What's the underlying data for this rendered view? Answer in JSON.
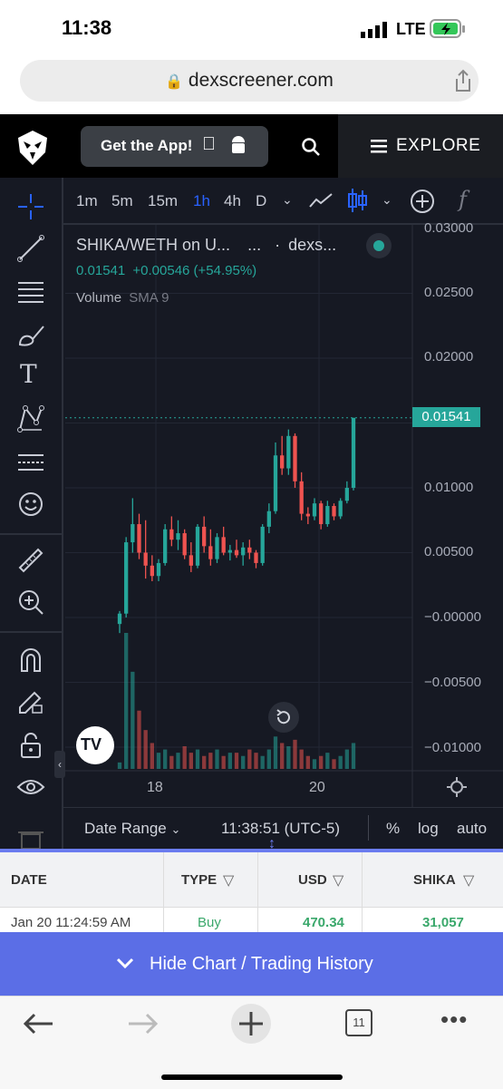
{
  "status": {
    "time": "11:38",
    "network": "LTE"
  },
  "browser": {
    "url": "dexscreener.com",
    "tabs_count": "11"
  },
  "header": {
    "get_app_label": "Get the App!",
    "explore_label": "EXPLORE"
  },
  "chart": {
    "timeframes": [
      "1m",
      "5m",
      "15m",
      "1h",
      "4h",
      "D"
    ],
    "active_timeframe": "1h",
    "symbol_title": "SHIKA/WETH on U...",
    "symbol_extra": "...",
    "exchange": "dexs...",
    "price_line": "0.01541",
    "change_line": "+0.00546 (+54.95%)",
    "indicator_label": "Volume",
    "indicator_param": "SMA 9",
    "current_price_tag": "0.01541",
    "price_axis": [
      "0.03000",
      "0.02500",
      "0.02000",
      "0.01000",
      "0.00500",
      "−0.00000",
      "−0.00500",
      "−0.01000"
    ],
    "time_axis": [
      "18",
      "20"
    ],
    "date_range_label": "Date Range",
    "clock_label": "11:38:51 (UTC-5)",
    "scale_percent": "%",
    "scale_log": "log",
    "scale_auto": "auto",
    "up_color": "#26a69a",
    "down_color": "#ef5350"
  },
  "chart_data": {
    "type": "candlestick",
    "title": "SHIKA/WETH",
    "ylim": [
      -0.012,
      0.03
    ],
    "candles": [
      {
        "o": -0.0005,
        "h": 0.0005,
        "l": -0.0012,
        "c": 0.0003
      },
      {
        "o": 0.0003,
        "h": 0.0062,
        "l": 0.0,
        "c": 0.0058
      },
      {
        "o": 0.0058,
        "h": 0.0092,
        "l": 0.005,
        "c": 0.0072
      },
      {
        "o": 0.0072,
        "h": 0.008,
        "l": 0.0045,
        "c": 0.005
      },
      {
        "o": 0.005,
        "h": 0.0075,
        "l": 0.003,
        "c": 0.004
      },
      {
        "o": 0.004,
        "h": 0.0048,
        "l": 0.0028,
        "c": 0.0032
      },
      {
        "o": 0.0032,
        "h": 0.0045,
        "l": 0.0028,
        "c": 0.0042
      },
      {
        "o": 0.0042,
        "h": 0.0072,
        "l": 0.004,
        "c": 0.0068
      },
      {
        "o": 0.0068,
        "h": 0.0078,
        "l": 0.0055,
        "c": 0.006
      },
      {
        "o": 0.006,
        "h": 0.0075,
        "l": 0.0052,
        "c": 0.0065
      },
      {
        "o": 0.0065,
        "h": 0.0068,
        "l": 0.0045,
        "c": 0.0048
      },
      {
        "o": 0.0048,
        "h": 0.0058,
        "l": 0.0035,
        "c": 0.004
      },
      {
        "o": 0.004,
        "h": 0.0072,
        "l": 0.0038,
        "c": 0.007
      },
      {
        "o": 0.007,
        "h": 0.0078,
        "l": 0.005,
        "c": 0.0055
      },
      {
        "o": 0.0055,
        "h": 0.0068,
        "l": 0.004,
        "c": 0.0045
      },
      {
        "o": 0.0045,
        "h": 0.0065,
        "l": 0.0042,
        "c": 0.0062
      },
      {
        "o": 0.0062,
        "h": 0.007,
        "l": 0.0048,
        "c": 0.005
      },
      {
        "o": 0.005,
        "h": 0.0056,
        "l": 0.0044,
        "c": 0.0052
      },
      {
        "o": 0.0052,
        "h": 0.006,
        "l": 0.0046,
        "c": 0.0048
      },
      {
        "o": 0.0048,
        "h": 0.0058,
        "l": 0.004,
        "c": 0.0054
      },
      {
        "o": 0.0054,
        "h": 0.006,
        "l": 0.0045,
        "c": 0.005
      },
      {
        "o": 0.005,
        "h": 0.0052,
        "l": 0.0038,
        "c": 0.0042
      },
      {
        "o": 0.0042,
        "h": 0.0072,
        "l": 0.004,
        "c": 0.007
      },
      {
        "o": 0.007,
        "h": 0.0088,
        "l": 0.0065,
        "c": 0.0082
      },
      {
        "o": 0.0082,
        "h": 0.0135,
        "l": 0.008,
        "c": 0.0125
      },
      {
        "o": 0.0125,
        "h": 0.014,
        "l": 0.011,
        "c": 0.0115
      },
      {
        "o": 0.0115,
        "h": 0.0145,
        "l": 0.011,
        "c": 0.014
      },
      {
        "o": 0.014,
        "h": 0.0142,
        "l": 0.01,
        "c": 0.0105
      },
      {
        "o": 0.0105,
        "h": 0.0112,
        "l": 0.0075,
        "c": 0.008
      },
      {
        "o": 0.008,
        "h": 0.0085,
        "l": 0.0072,
        "c": 0.0078
      },
      {
        "o": 0.0078,
        "h": 0.0092,
        "l": 0.0075,
        "c": 0.0088
      },
      {
        "o": 0.0088,
        "h": 0.009,
        "l": 0.0068,
        "c": 0.0072
      },
      {
        "o": 0.0072,
        "h": 0.009,
        "l": 0.007,
        "c": 0.0086
      },
      {
        "o": 0.0086,
        "h": 0.0088,
        "l": 0.0075,
        "c": 0.0078
      },
      {
        "o": 0.0078,
        "h": 0.0092,
        "l": 0.0076,
        "c": 0.009
      },
      {
        "o": 0.009,
        "h": 0.0105,
        "l": 0.0088,
        "c": 0.01
      },
      {
        "o": 0.01,
        "h": 0.0154,
        "l": 0.0098,
        "c": 0.0154
      }
    ],
    "volume": [
      2,
      42,
      30,
      18,
      12,
      8,
      5,
      6,
      4,
      5,
      7,
      5,
      6,
      4,
      5,
      6,
      4,
      5,
      5,
      4,
      6,
      5,
      4,
      6,
      10,
      8,
      7,
      9,
      6,
      4,
      3,
      4,
      5,
      3,
      4,
      6,
      8
    ]
  },
  "table": {
    "headers": [
      "DATE",
      "TYPE",
      "USD",
      "SHIKA"
    ],
    "row": {
      "date": "Jan 20 11:24:59 AM",
      "type": "Buy",
      "usd": "470.34",
      "shika": "31,057"
    }
  },
  "hide_label": "Hide Chart / Trading History"
}
